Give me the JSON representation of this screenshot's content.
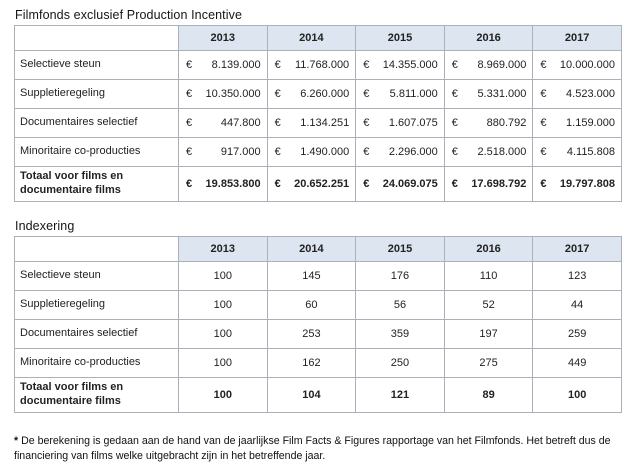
{
  "colors": {
    "header_bg": "#dce5f0",
    "border": "#aab1b9",
    "page_bg": "#ffffff",
    "text": "#222222"
  },
  "table1": {
    "title": "Filmfonds exclusief Production Incentive",
    "currency_symbol": "€",
    "years": [
      "2013",
      "2014",
      "2015",
      "2016",
      "2017"
    ],
    "rows": [
      {
        "label": "Selectieve steun",
        "values": [
          "8.139.000",
          "11.768.000",
          "14.355.000",
          "8.969.000",
          "10.000.000"
        ],
        "bold": false
      },
      {
        "label": "Suppletieregeling",
        "values": [
          "10.350.000",
          "6.260.000",
          "5.811.000",
          "5.331.000",
          "4.523.000"
        ],
        "bold": false
      },
      {
        "label": "Documentaires selectief",
        "values": [
          "447.800",
          "1.134.251",
          "1.607.075",
          "880.792",
          "1.159.000"
        ],
        "bold": false
      },
      {
        "label": "Minoritaire co-producties",
        "values": [
          "917.000",
          "1.490.000",
          "2.296.000",
          "2.518.000",
          "4.115.808"
        ],
        "bold": false
      },
      {
        "label": "Totaal voor films en documentaire films",
        "values": [
          "19.853.800",
          "20.652.251",
          "24.069.075",
          "17.698.792",
          "19.797.808"
        ],
        "bold": true
      }
    ]
  },
  "table2": {
    "title": "Indexering",
    "years": [
      "2013",
      "2014",
      "2015",
      "2016",
      "2017"
    ],
    "rows": [
      {
        "label": "Selectieve steun",
        "values": [
          "100",
          "145",
          "176",
          "110",
          "123"
        ],
        "bold": false
      },
      {
        "label": "Suppletieregeling",
        "values": [
          "100",
          "60",
          "56",
          "52",
          "44"
        ],
        "bold": false
      },
      {
        "label": "Documentaires selectief",
        "values": [
          "100",
          "253",
          "359",
          "197",
          "259"
        ],
        "bold": false
      },
      {
        "label": "Minoritaire co-producties",
        "values": [
          "100",
          "162",
          "250",
          "275",
          "449"
        ],
        "bold": false
      },
      {
        "label": "Totaal voor films en documentaire films",
        "values": [
          "100",
          "104",
          "121",
          "89",
          "100"
        ],
        "bold": true
      }
    ]
  },
  "footnote": {
    "marker": "*",
    "text": "De berekening is gedaan aan de hand van de jaarlijkse Film Facts & Figures rapportage van het Filmfonds. Het betreft dus de financiering van films welke uitgebracht zijn in het betreffende jaar."
  }
}
